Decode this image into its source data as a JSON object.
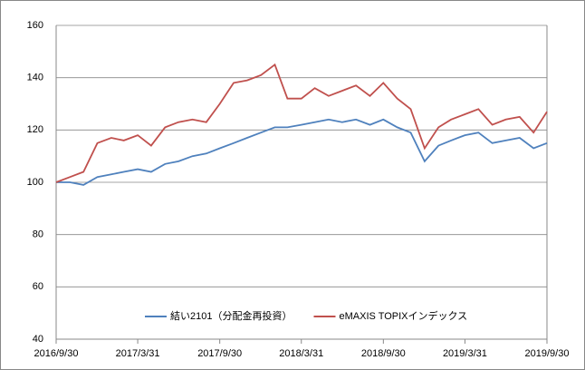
{
  "chart_data": {
    "type": "line",
    "x": [
      "2016/9/30",
      "2016/10/31",
      "2016/11/30",
      "2016/12/31",
      "2017/1/31",
      "2017/2/28",
      "2017/3/31",
      "2017/4/30",
      "2017/5/31",
      "2017/6/30",
      "2017/7/31",
      "2017/8/31",
      "2017/9/30",
      "2017/10/31",
      "2017/11/30",
      "2017/12/31",
      "2018/1/31",
      "2018/2/28",
      "2018/3/31",
      "2018/4/30",
      "2018/5/31",
      "2018/6/30",
      "2018/7/31",
      "2018/8/31",
      "2018/9/30",
      "2018/10/31",
      "2018/11/30",
      "2018/12/31",
      "2019/1/31",
      "2019/2/28",
      "2019/3/31",
      "2019/4/30",
      "2019/5/31",
      "2019/6/30",
      "2019/7/31",
      "2019/8/31",
      "2019/9/30"
    ],
    "series": [
      {
        "name": "結い2101（分配金再投資）",
        "color": "#4f81bd",
        "values": [
          100,
          100,
          99,
          102,
          103,
          104,
          105,
          104,
          107,
          108,
          110,
          111,
          113,
          115,
          117,
          119,
          121,
          121,
          122,
          123,
          124,
          123,
          124,
          122,
          124,
          121,
          119,
          108,
          114,
          116,
          118,
          119,
          115,
          116,
          117,
          113,
          115
        ]
      },
      {
        "name": "eMAXIS TOPIXインデックス",
        "color": "#c0504d",
        "values": [
          100,
          102,
          104,
          115,
          117,
          116,
          118,
          114,
          121,
          123,
          124,
          123,
          130,
          138,
          139,
          141,
          145,
          132,
          132,
          136,
          133,
          135,
          137,
          133,
          138,
          132,
          128,
          113,
          121,
          124,
          126,
          128,
          122,
          124,
          125,
          119,
          127
        ]
      }
    ],
    "xlim": [
      "2016/9/30",
      "2019/9/30"
    ],
    "xticks": [
      "2016/9/30",
      "2017/3/31",
      "2017/9/30",
      "2018/3/31",
      "2018/9/30",
      "2019/3/31",
      "2019/9/30"
    ],
    "ylim": [
      40,
      160
    ],
    "yticks": [
      40,
      60,
      80,
      100,
      120,
      140,
      160
    ],
    "grid": true,
    "legend": "bottom"
  }
}
